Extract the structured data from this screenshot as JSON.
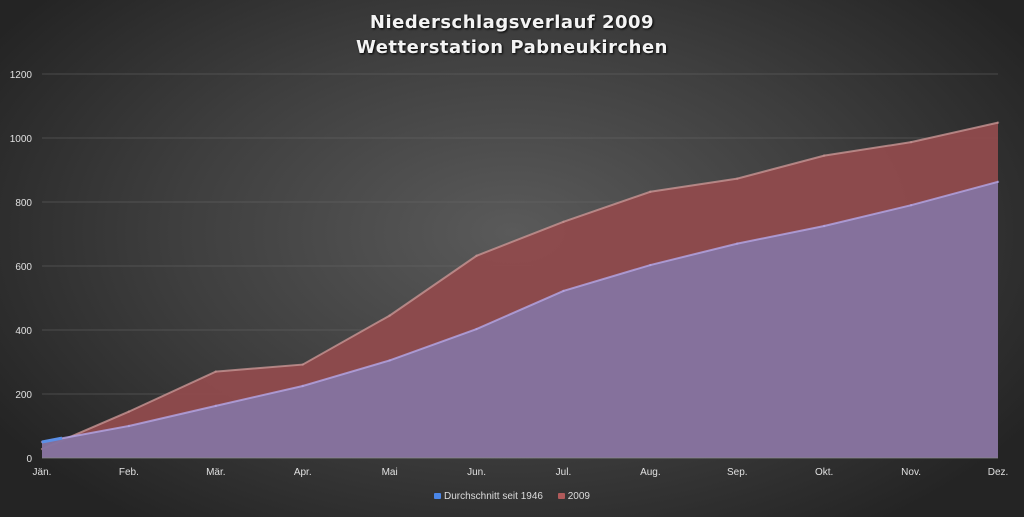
{
  "chart_data": {
    "type": "area",
    "title": "Niederschlagsverlauf 2009",
    "subtitle": "Wetterstation Pabneukirchen",
    "xlabel": "",
    "ylabel": "",
    "categories": [
      "Jän.",
      "Feb.",
      "Mär.",
      "Apr.",
      "Mai",
      "Jun.",
      "Jul.",
      "Aug.",
      "Sep.",
      "Okt.",
      "Nov.",
      "Dez."
    ],
    "ylim": [
      0,
      1200
    ],
    "yticks": [
      0,
      200,
      400,
      600,
      800,
      1000,
      1200
    ],
    "grid": true,
    "legend_position": "bottom",
    "series": [
      {
        "name": "2009",
        "color": "#8e4a4c",
        "line_color": "#c79593",
        "values": [
          28,
          145,
          270,
          292,
          445,
          632,
          738,
          832,
          873,
          945,
          987,
          1048
        ]
      },
      {
        "name": "Durchschnitt seit 1946",
        "color": "#85739f",
        "line_color": "#b4a6e6",
        "values": [
          50,
          100,
          163,
          225,
          305,
          403,
          522,
          603,
          670,
          725,
          790,
          863
        ]
      }
    ]
  },
  "legend": {
    "items": [
      {
        "label": "Durchschnitt seit 1946",
        "color": "#4a86e8"
      },
      {
        "label": "2009",
        "color": "#b05a5a"
      }
    ]
  }
}
